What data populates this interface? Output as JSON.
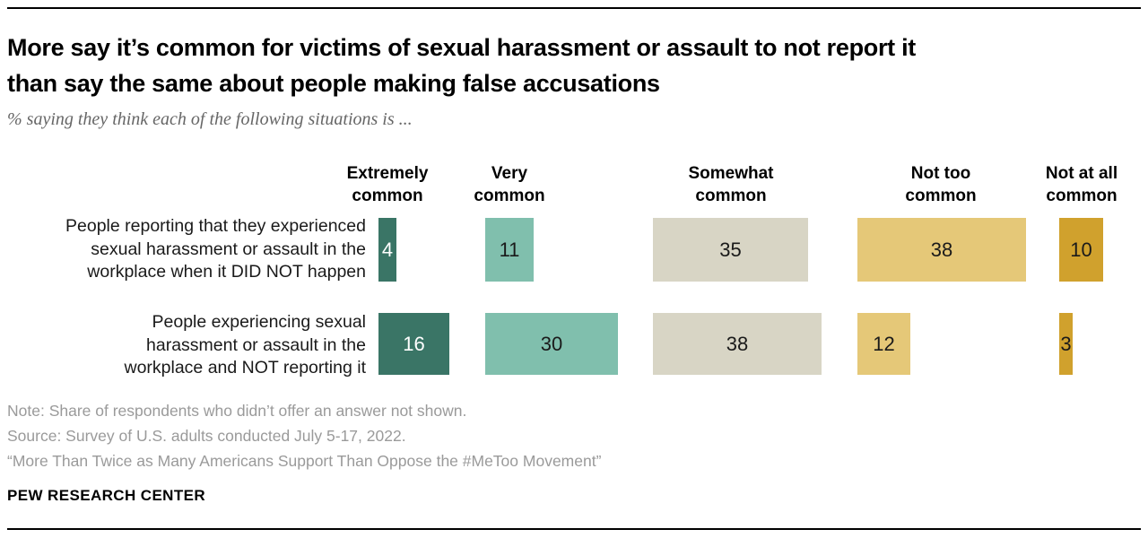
{
  "header": {
    "title_line1": "More say it’s common for victims of sexual harassment or assault to not report it",
    "title_line2": "than say the same about people making false accusations",
    "subtitle": "% saying they think each of the following situations is ..."
  },
  "chart_data": {
    "type": "bar",
    "orientation": "horizontal",
    "value_unit": "percent",
    "legend_position": "top-as-column-headers",
    "grid": false,
    "value_labels_shown": true,
    "categories": [
      "Extremely common",
      "Very common",
      "Somewhat common",
      "Not too common",
      "Not at all common"
    ],
    "colors": [
      "#3A7566",
      "#80BFAD",
      "#D8D5C5",
      "#E5C878",
      "#D0A12D"
    ],
    "rows": [
      {
        "label": "People reporting that they experienced sexual harassment or assault in the workplace when it DID NOT happen",
        "values": [
          4,
          11,
          35,
          38,
          10
        ]
      },
      {
        "label": "People experiencing sexual harassment or assault in the workplace and NOT reporting it",
        "values": [
          16,
          30,
          38,
          12,
          3
        ]
      }
    ]
  },
  "footer": {
    "notes": [
      "Note: Share of respondents who didn’t offer an answer not shown.",
      "Source: Survey of U.S. adults conducted July 5-17, 2022.",
      "“More Than Twice as Many Americans Support Than Oppose the #MeToo Movement”"
    ],
    "brand": "PEW RESEARCH CENTER"
  }
}
